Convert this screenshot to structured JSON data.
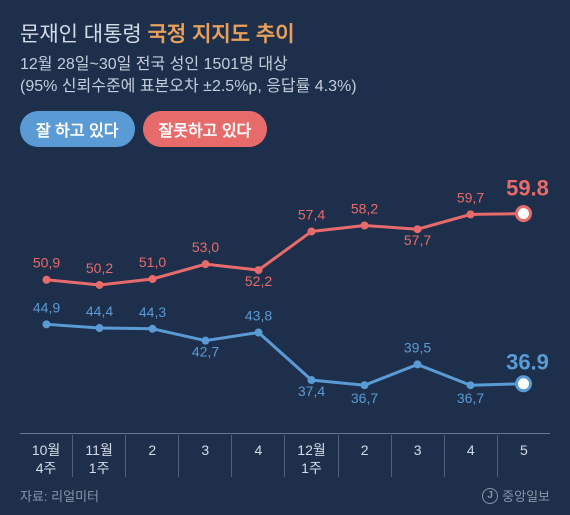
{
  "colors": {
    "background": "#1d2f4a",
    "positive": "#5a9bd5",
    "negative": "#e86b6b",
    "text_light": "#d4dce8",
    "text_white": "#ffffff",
    "title_accent": "#e8a05a",
    "footer_text": "#8a95a8",
    "grid": "#3a4a62",
    "baseline": "#6a7890"
  },
  "title": {
    "prefix": "문재인 대통령",
    "main": "국정 지지도 추이",
    "prefix_color": "#d4dce8",
    "main_color": "#e8a05a",
    "fontsize": 21
  },
  "subtitle": {
    "line1": "12월 28일~30일 전국 성인 1501명 대상",
    "line2": "(95% 신뢰수준에 표본오차 ±2.5%p, 응답률 4.3%)",
    "color": "#c4cedc",
    "fontsize": 16
  },
  "legend": {
    "positive_label": "잘 하고 있다",
    "negative_label": "잘못하고 있다",
    "fontsize": 16
  },
  "chart": {
    "type": "line",
    "ylim": [
      30,
      65
    ],
    "x_labels": [
      {
        "l1": "10월",
        "l2": "4주"
      },
      {
        "l1": "11월",
        "l2": "1주"
      },
      {
        "l1": "2",
        "l2": ""
      },
      {
        "l1": "3",
        "l2": ""
      },
      {
        "l1": "4",
        "l2": ""
      },
      {
        "l1": "12월",
        "l2": "1주"
      },
      {
        "l1": "2",
        "l2": ""
      },
      {
        "l1": "3",
        "l2": ""
      },
      {
        "l1": "4",
        "l2": ""
      },
      {
        "l1": "5",
        "l2": ""
      }
    ],
    "series": {
      "negative": {
        "values": [
          50.9,
          50.2,
          51.0,
          53.0,
          52.2,
          57.4,
          58.2,
          57.7,
          59.7,
          59.8
        ],
        "color": "#e86b6b",
        "line_width": 3,
        "marker_radius": 4,
        "end_marker_radius": 7,
        "end_value": "59.8",
        "end_label_fontsize": 22
      },
      "positive": {
        "values": [
          44.9,
          44.4,
          44.3,
          42.7,
          43.8,
          37.4,
          36.7,
          39.5,
          36.7,
          36.9
        ],
        "color": "#5a9bd5",
        "line_width": 3,
        "marker_radius": 4,
        "end_marker_radius": 7,
        "end_value": "36.9",
        "end_label_fontsize": 22
      }
    },
    "label_fontsize": 14,
    "label_offsets": {
      "negative": [
        -12,
        -12,
        -12,
        -12,
        16,
        -12,
        -12,
        16,
        -12,
        -18
      ],
      "positive": [
        -12,
        -12,
        -12,
        16,
        -12,
        16,
        18,
        -12,
        18,
        -14
      ]
    }
  },
  "footer": {
    "source_label": "자료: 리얼미터",
    "logo_text": "중앙일보",
    "logo_letter": "J",
    "color": "#8a95a8"
  }
}
